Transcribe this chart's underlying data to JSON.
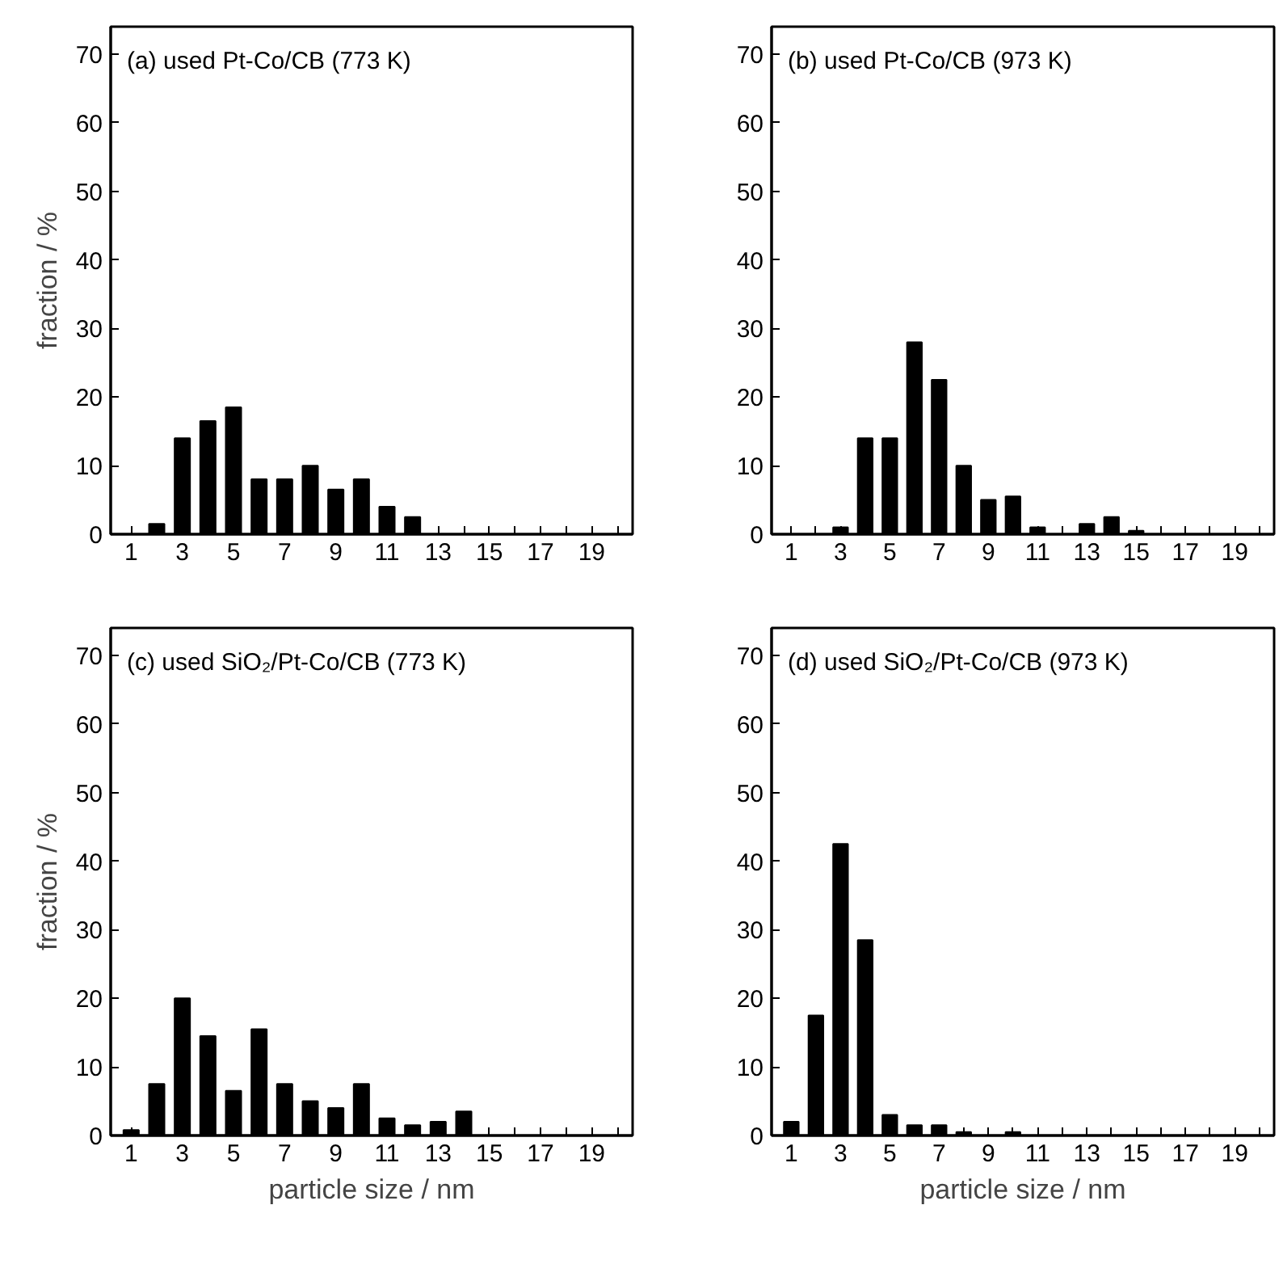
{
  "chart_data": [
    {
      "type": "bar",
      "title": "(a) used Pt-Co/CB (773 K)",
      "ylabel": "fraction / %",
      "color": "#000000",
      "xlim": [
        0.2,
        20.6
      ],
      "ylim": [
        0,
        74
      ],
      "xticks": [
        1,
        {
          "value": 2,
          "label": null
        },
        3,
        {
          "value": 4,
          "label": null
        },
        5,
        {
          "value": 6,
          "label": null
        },
        7,
        {
          "value": 8,
          "label": null
        },
        9,
        {
          "value": 10,
          "label": null
        },
        11,
        {
          "value": 12,
          "label": null
        },
        13,
        {
          "value": 14,
          "label": null
        },
        15,
        {
          "value": 16,
          "label": null
        },
        17,
        {
          "value": 18,
          "label": null
        },
        19,
        {
          "value": 20,
          "label": null
        }
      ],
      "yticks": [
        0,
        10,
        20,
        30,
        40,
        50,
        60,
        70
      ],
      "x": [
        1,
        2,
        3,
        4,
        5,
        6,
        7,
        8,
        9,
        10,
        11,
        12,
        13,
        14,
        15,
        16,
        17,
        18,
        19,
        20
      ],
      "values": [
        0,
        1.5,
        14,
        16.5,
        18.5,
        8,
        8,
        10,
        6.5,
        8,
        4,
        2.5,
        0,
        0,
        0,
        0,
        0,
        0,
        0,
        0
      ]
    },
    {
      "type": "bar",
      "title": "(b) used Pt-Co/CB (973 K)",
      "color": "#000000",
      "xlim": [
        0.2,
        20.6
      ],
      "ylim": [
        0,
        74
      ],
      "xticks": [
        1,
        {
          "value": 2,
          "label": null
        },
        3,
        {
          "value": 4,
          "label": null
        },
        5,
        {
          "value": 6,
          "label": null
        },
        7,
        {
          "value": 8,
          "label": null
        },
        9,
        {
          "value": 10,
          "label": null
        },
        11,
        {
          "value": 12,
          "label": null
        },
        13,
        {
          "value": 14,
          "label": null
        },
        15,
        {
          "value": 16,
          "label": null
        },
        17,
        {
          "value": 18,
          "label": null
        },
        19,
        {
          "value": 20,
          "label": null
        }
      ],
      "yticks": [
        0,
        10,
        20,
        30,
        40,
        50,
        60,
        70
      ],
      "x": [
        1,
        2,
        3,
        4,
        5,
        6,
        7,
        8,
        9,
        10,
        11,
        12,
        13,
        14,
        15,
        16,
        17,
        18,
        19,
        20
      ],
      "values": [
        0,
        0,
        1,
        14,
        14,
        28,
        22.5,
        10,
        5,
        5.5,
        1,
        0,
        1.5,
        2.5,
        0.5,
        0,
        0,
        0,
        0,
        0
      ]
    },
    {
      "type": "bar",
      "title": "(c) used SiO₂/Pt-Co/CB (773 K)",
      "xlabel": "particle size / nm",
      "ylabel": "fraction / %",
      "color": "#000000",
      "xlim": [
        0.2,
        20.6
      ],
      "ylim": [
        0,
        74
      ],
      "xticks": [
        1,
        {
          "value": 2,
          "label": null
        },
        3,
        {
          "value": 4,
          "label": null
        },
        5,
        {
          "value": 6,
          "label": null
        },
        7,
        {
          "value": 8,
          "label": null
        },
        9,
        {
          "value": 10,
          "label": null
        },
        11,
        {
          "value": 12,
          "label": null
        },
        13,
        {
          "value": 14,
          "label": null
        },
        15,
        {
          "value": 16,
          "label": null
        },
        17,
        {
          "value": 18,
          "label": null
        },
        19,
        {
          "value": 20,
          "label": null
        }
      ],
      "yticks": [
        0,
        10,
        20,
        30,
        40,
        50,
        60,
        70
      ],
      "x": [
        1,
        2,
        3,
        4,
        5,
        6,
        7,
        8,
        9,
        10,
        11,
        12,
        13,
        14,
        15,
        16,
        17,
        18,
        19,
        20
      ],
      "values": [
        0.8,
        7.5,
        20,
        14.5,
        6.5,
        15.5,
        7.5,
        5,
        4,
        7.5,
        2.5,
        1.5,
        2,
        3.5,
        0,
        0,
        0,
        0,
        0,
        0
      ]
    },
    {
      "type": "bar",
      "title": "(d) used SiO₂/Pt-Co/CB (973 K)",
      "xlabel": "particle size / nm",
      "color": "#000000",
      "xlim": [
        0.2,
        20.6
      ],
      "ylim": [
        0,
        74
      ],
      "xticks": [
        1,
        {
          "value": 2,
          "label": null
        },
        3,
        {
          "value": 4,
          "label": null
        },
        5,
        {
          "value": 6,
          "label": null
        },
        7,
        {
          "value": 8,
          "label": null
        },
        9,
        {
          "value": 10,
          "label": null
        },
        11,
        {
          "value": 12,
          "label": null
        },
        13,
        {
          "value": 14,
          "label": null
        },
        15,
        {
          "value": 16,
          "label": null
        },
        17,
        {
          "value": 18,
          "label": null
        },
        19,
        {
          "value": 20,
          "label": null
        }
      ],
      "yticks": [
        0,
        10,
        20,
        30,
        40,
        50,
        60,
        70
      ],
      "x": [
        1,
        2,
        3,
        4,
        5,
        6,
        7,
        8,
        9,
        10,
        11,
        12,
        13,
        14,
        15,
        16,
        17,
        18,
        19,
        20
      ],
      "values": [
        2,
        17.5,
        42.5,
        28.5,
        3,
        1.5,
        1.5,
        0.5,
        0,
        0.5,
        0,
        0,
        0,
        0,
        0,
        0,
        0,
        0,
        0,
        0
      ]
    }
  ]
}
